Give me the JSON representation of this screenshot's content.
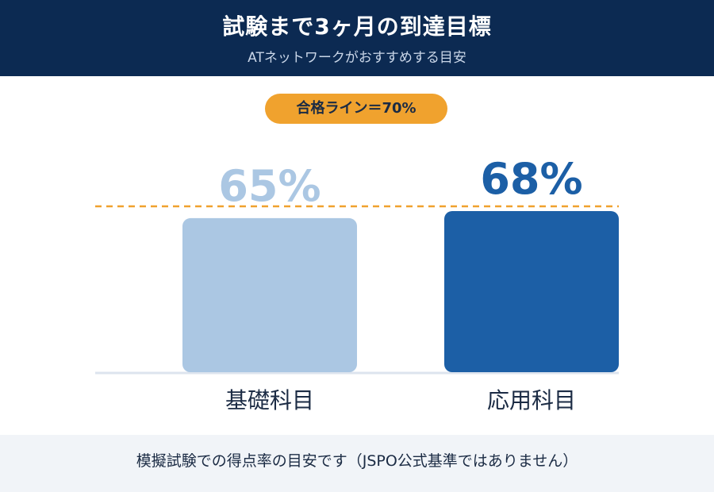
{
  "header": {
    "title": "試験まで3ヶ月の到達目標",
    "subtitle": "ATネットワークがおすすめする目安"
  },
  "pass_badge": "合格ライン＝70%",
  "footer_note": "模擬試験での得点率の目安です（JSPO公式基準ではありません）",
  "colors": {
    "header_bg": "#0c2a52",
    "light_bar": "#abc7e3",
    "dark_bar": "#1c5fa6",
    "pass_line": "#f0a22e"
  },
  "chart_data": {
    "type": "bar",
    "title": "",
    "xlabel": "",
    "ylabel": "",
    "categories": [
      "基礎科目",
      "応用科目"
    ],
    "values": [
      65,
      68
    ],
    "value_labels": [
      "65%",
      "68%"
    ],
    "unit": "%",
    "reference_line": {
      "value": 70,
      "style": "dashed"
    },
    "ylim": [
      0,
      70
    ],
    "grid": false,
    "legend": "none"
  }
}
